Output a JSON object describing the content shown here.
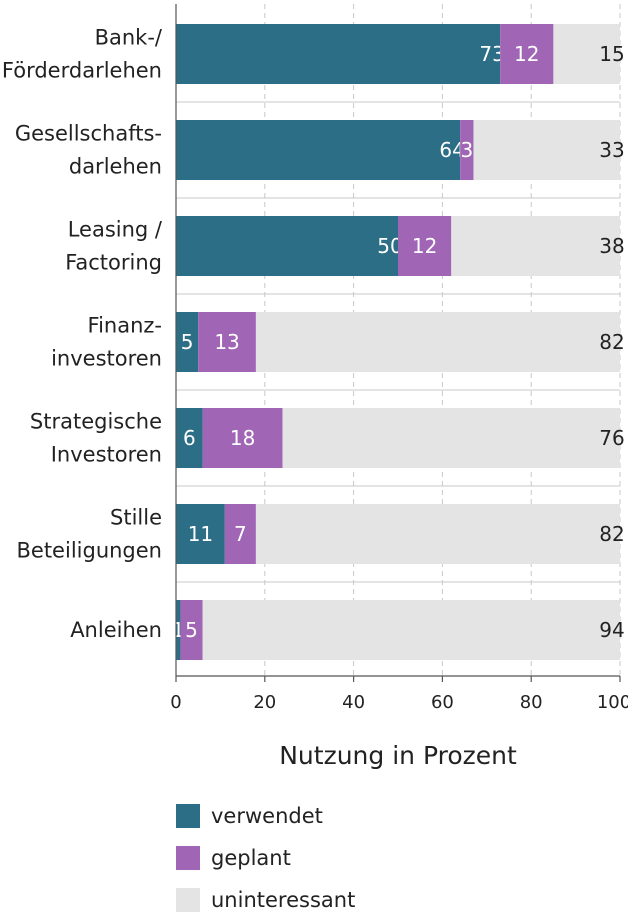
{
  "colors": {
    "verwendet": "#2c6e86",
    "geplant": "#a066b5",
    "uninteressant": "#e4e4e4",
    "grid": "#c8c8c8",
    "axis": "#555555"
  },
  "chart_data": {
    "type": "bar",
    "orientation": "horizontal",
    "stacked": true,
    "categories": [
      [
        "Bank-/",
        "Förderdarlehen"
      ],
      [
        "Gesellschafts-",
        "darlehen"
      ],
      [
        "Leasing /",
        "Factoring"
      ],
      [
        "Finanz-",
        "investoren"
      ],
      [
        "Strategische",
        "Investoren"
      ],
      [
        "Stille",
        "Beteiligungen"
      ],
      [
        "Anleihen"
      ]
    ],
    "series": [
      {
        "name": "verwendet",
        "values": [
          73,
          64,
          50,
          5,
          6,
          11,
          1
        ]
      },
      {
        "name": "geplant",
        "values": [
          12,
          3,
          12,
          13,
          18,
          7,
          5
        ]
      },
      {
        "name": "uninteressant",
        "values": [
          15,
          33,
          38,
          82,
          76,
          82,
          94
        ]
      }
    ],
    "xlabel": "Nutzung in Prozent",
    "xlim": [
      0,
      100
    ],
    "xticks": [
      0,
      20,
      40,
      60,
      80,
      100
    ],
    "grid": "vertical dashed",
    "legend": "bottom-left"
  }
}
